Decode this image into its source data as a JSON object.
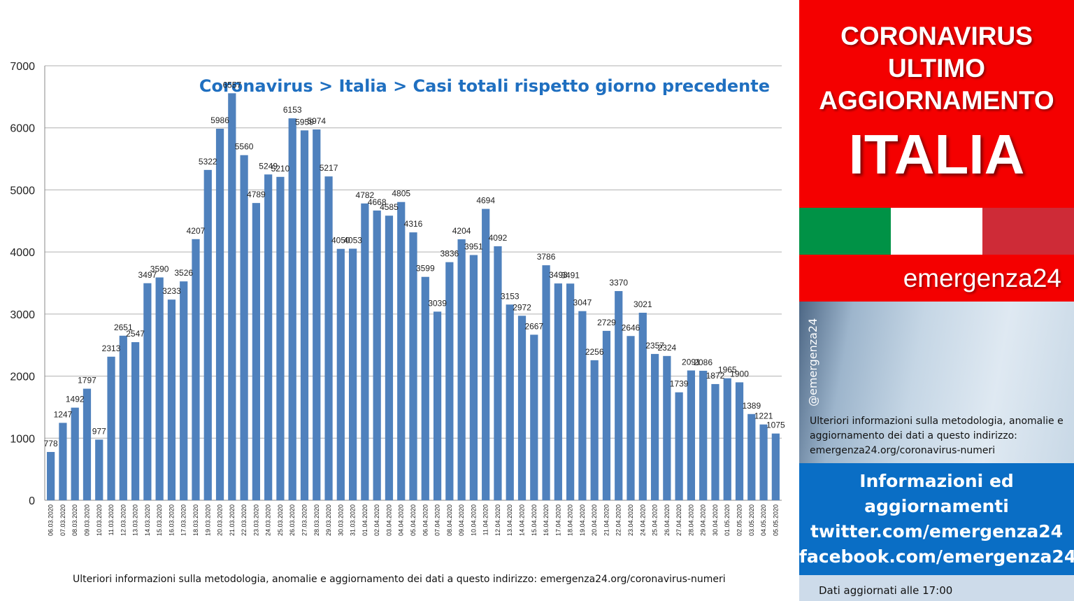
{
  "chart_data": {
    "type": "bar",
    "title": "Coronavirus > Italia > Casi totali rispetto giorno precedente",
    "ylim": [
      0,
      7000
    ],
    "yticks": [
      "0",
      "1000",
      "2000",
      "3000",
      "4000",
      "5000",
      "6000",
      "7000"
    ],
    "grid": true,
    "bar_color": "#4f81bd",
    "categories": [
      "06.03.2020",
      "07.03.2020",
      "08.03.2020",
      "09.03.2020",
      "10.03.2020",
      "11.03.2020",
      "12.03.2020",
      "13.03.2020",
      "14.03.2020",
      "15.03.2020",
      "16.03.2020",
      "17.03.2020",
      "18.03.2020",
      "19.03.2020",
      "20.03.2020",
      "21.03.2020",
      "22.03.2020",
      "23.03.2020",
      "24.03.2020",
      "25.03.2020",
      "26.03.2020",
      "27.03.2020",
      "28.03.2020",
      "29.03.2020",
      "30.03.2020",
      "31.03.2020",
      "01.04.2020",
      "02.04.2020",
      "03.04.2020",
      "04.04.2020",
      "05.04.2020",
      "06.04.2020",
      "07.04.2020",
      "08.04.2020",
      "09.04.2020",
      "10.04.2020",
      "11.04.2020",
      "12.04.2020",
      "13.04.2020",
      "14.04.2020",
      "15.04.2020",
      "16.04.2020",
      "17.04.2020",
      "18.04.2020",
      "19.04.2020",
      "20.04.2020",
      "21.04.2020",
      "22.04.2020",
      "23.04.2020",
      "24.04.2020",
      "25.04.2020",
      "26.04.2020",
      "27.04.2020",
      "28.04.2020",
      "29.04.2020",
      "30.04.2020",
      "01.05.2020",
      "02.05.2020",
      "03.05.2020",
      "04.05.2020",
      "05.05.2020"
    ],
    "values": [
      778,
      1247,
      1492,
      1797,
      977,
      2313,
      2651,
      2547,
      3497,
      3590,
      3233,
      3526,
      4207,
      5322,
      5986,
      6557,
      5560,
      4789,
      5249,
      5210,
      6153,
      5959,
      5974,
      5217,
      4050,
      4053,
      4782,
      4668,
      4585,
      4805,
      4316,
      3599,
      3039,
      3836,
      4204,
      3951,
      4694,
      4092,
      3153,
      2972,
      2667,
      3786,
      3493,
      3491,
      3047,
      2256,
      2729,
      3370,
      2646,
      3021,
      2357,
      2324,
      1739,
      2091,
      2086,
      1872,
      1965,
      1900,
      1389,
      1221,
      1075
    ]
  },
  "footnote": "Ulteriori informazioni sulla metodologia, anomalie e aggiornamento dei dati a questo indirizzo: emergenza24.org/coronavirus-numeri",
  "panel": {
    "headline_lines": [
      "CORONAVIRUS",
      "ULTIMO",
      "AGGIORNAMENTO"
    ],
    "country": "ITALIA",
    "brand": "emergenza24",
    "handle": "@emergenza24",
    "info_text": "Ulteriori informazioni sulla metodologia, anomalie e aggiornamento dei dati a questo indirizzo: emergenza24.org/coronavirus-numeri",
    "social_lines": [
      "Informazioni ed",
      "aggiornamenti",
      "twitter.com/emergenza24",
      "facebook.com/emergenza24"
    ],
    "updated": "Dati aggiornati alle 17:00",
    "colors": {
      "red": "#f40000",
      "flag_green": "#009246",
      "flag_white": "#ffffff",
      "flag_red": "#ce2b37",
      "blue": "#0a6ec5"
    }
  }
}
